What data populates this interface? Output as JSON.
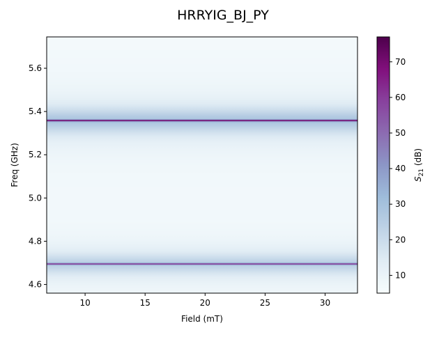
{
  "chart_data": {
    "type": "heatmap",
    "title": "HRRYIG_BJ_PY",
    "xlabel": "Field (mT)",
    "ylabel": "Freq (GHz)",
    "colorbar_label": "S21 (dB)",
    "colorbar_label_parts": {
      "base": "S",
      "sub": "21",
      "unit": " (dB)"
    },
    "colormap": "BuPu",
    "xlim": [
      6.8,
      32.7
    ],
    "ylim": [
      4.56,
      5.745
    ],
    "clim": [
      5,
      77
    ],
    "xticks": [
      10,
      15,
      20,
      25,
      30
    ],
    "xtick_labels": [
      "10",
      "15",
      "20",
      "25",
      "30"
    ],
    "yticks": [
      4.6,
      4.8,
      5.0,
      5.2,
      5.4,
      5.6
    ],
    "ytick_labels": [
      "4.6",
      "4.8",
      "5.0",
      "5.2",
      "5.4",
      "5.6"
    ],
    "cticks": [
      10,
      20,
      30,
      40,
      50,
      60,
      70
    ],
    "ctick_labels": [
      "10",
      "20",
      "30",
      "40",
      "50",
      "60",
      "70"
    ],
    "baseline_db": 6,
    "resonances": [
      {
        "freq": 5.358,
        "peak_db": 70,
        "width_ghz": 0.004,
        "tail_db": 22,
        "tail_width_ghz": 0.06
      },
      {
        "freq": 4.695,
        "peak_db": 60,
        "width_ghz": 0.004,
        "tail_db": 18,
        "tail_width_ghz": 0.05
      }
    ],
    "grid": false
  }
}
